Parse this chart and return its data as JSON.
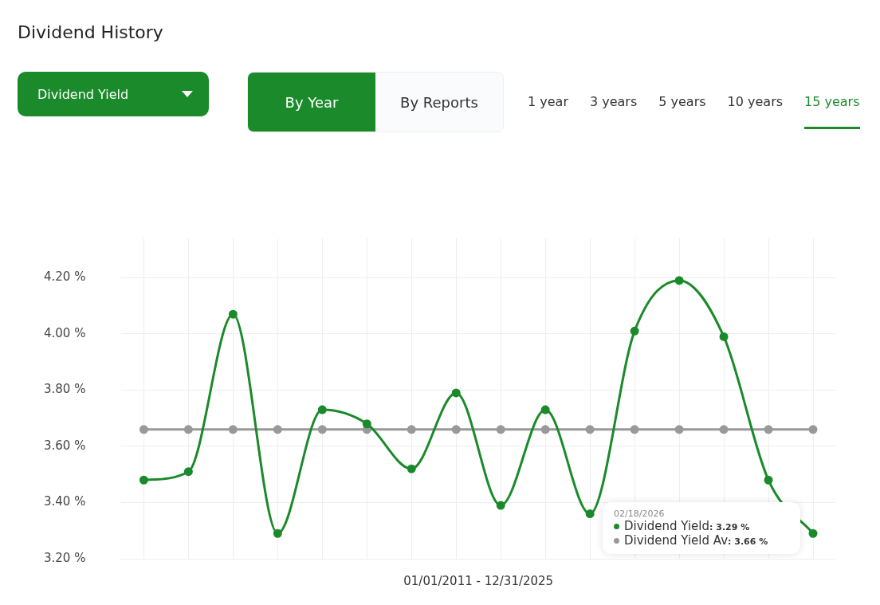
{
  "chart_data": {
    "type": "line",
    "title": "Dividend History",
    "xlabel": "01/01/2011 - 12/31/2025",
    "annotations": [
      "Dividend Yield",
      "By Year",
      "By Reports",
      "1 year",
      "3 years",
      "5 years",
      "10 years",
      "15 years",
      "02/18/2026",
      ": 3.29 %",
      ": 3.66 %"
    ],
    "categories": [
      null,
      null,
      null,
      null,
      null,
      null,
      null,
      null,
      null,
      null,
      null,
      null,
      null,
      null,
      null,
      null
    ],
    "series": [
      {
        "name": "Dividend Yield",
        "color": "#1a8a2a",
        "values": [
          3.48,
          3.51,
          4.07,
          3.29,
          3.73,
          3.68,
          3.52,
          3.79,
          3.39,
          3.73,
          3.36,
          4.01,
          4.19,
          3.99,
          3.48,
          3.29
        ]
      },
      {
        "name": "Dividend Yield Av",
        "color": "#999999",
        "values": [
          3.66,
          3.66,
          3.66,
          3.66,
          3.66,
          3.66,
          3.66,
          3.66,
          3.66,
          3.66,
          3.66,
          3.66,
          3.66,
          3.66,
          3.66,
          3.66
        ]
      }
    ],
    "ylim": [
      3.2,
      4.34
    ],
    "yticks": [
      {
        "value": 3.2,
        "label": "3.20 %"
      },
      {
        "value": 3.4,
        "label": "3.40 %"
      },
      {
        "value": 3.6,
        "label": "3.60 %"
      },
      {
        "value": 3.8,
        "label": "3.80 %"
      },
      {
        "value": 4.0,
        "label": "4.00 %"
      },
      {
        "value": 4.2,
        "label": "4.20 %"
      }
    ],
    "grid": true,
    "marker": "circle",
    "line_style": "solid",
    "legend": "bottom right"
  }
}
